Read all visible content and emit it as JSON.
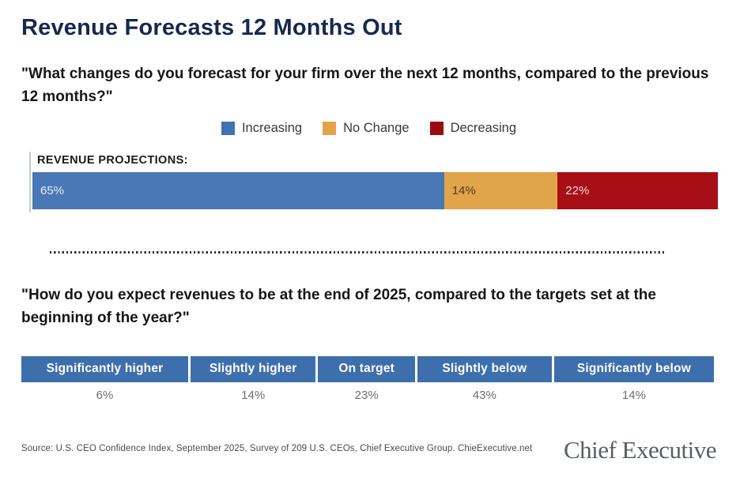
{
  "page": {
    "title": "Revenue Forecasts 12 Months Out",
    "question_1": "\"What changes do you forecast for your firm over the next 12 months, compared to the previous 12 months?\"",
    "question_2": "\"How do you expect revenues to be at the end of 2025, compared to the targets set at the beginning of the year?\"",
    "source": "Source: U.S. CEO Confidence Index, September 2025, Survey of 209 U.S. CEOs, Chief Executive Group. ChieExecutive.net",
    "logo": "Chief Executive"
  },
  "legend": {
    "items": [
      {
        "label": "Increasing",
        "color": "#3d72b4"
      },
      {
        "label": "No Change",
        "color": "#e2a44a"
      },
      {
        "label": "Decreasing",
        "color": "#9a0b11"
      }
    ]
  },
  "revenue_bar": {
    "label": "REVENUE PROJECTIONS:",
    "segments": [
      {
        "name": "Increasing",
        "value_label": "65%",
        "pct": 65,
        "color": "#4a77b5",
        "text_color": "#e9eef6"
      },
      {
        "name": "No Change",
        "value_label": "14%",
        "pct": 14,
        "color": "#e2a44a",
        "text_color": "#4d3a16"
      },
      {
        "name": "Decreasing",
        "value_label": "22%",
        "pct": 22,
        "color": "#a80e15",
        "text_color": "#f0d9d9"
      }
    ]
  },
  "targets_table": {
    "headers": [
      "Significantly higher",
      "Slightly higher",
      "On target",
      "Slightly below",
      "Significantly below"
    ],
    "values": [
      "6%",
      "14%",
      "23%",
      "43%",
      "14%"
    ],
    "header_bg": "#3e6fad",
    "col_weights": [
      24.1,
      18.1,
      14.0,
      19.4,
      23.1
    ]
  },
  "chart_data": [
    {
      "type": "bar",
      "stacked": true,
      "orientation": "horizontal",
      "title": "Revenue Forecasts 12 Months Out",
      "subtitle": "\"What changes do you forecast for your firm over the next 12 months, compared to the previous 12 months?\"",
      "categories": [
        "REVENUE PROJECTIONS:"
      ],
      "series": [
        {
          "name": "Increasing",
          "values": [
            65
          ],
          "color": "#4a77b5"
        },
        {
          "name": "No Change",
          "values": [
            14
          ],
          "color": "#e2a44a"
        },
        {
          "name": "Decreasing",
          "values": [
            22
          ],
          "color": "#a80e15"
        }
      ],
      "unit": "%",
      "legend_position": "top",
      "data_labels": true,
      "grid": false
    },
    {
      "type": "table",
      "title": "\"How do you expect revenues to be at the end of 2025, compared to the targets set at the beginning of the year?\"",
      "categories": [
        "Significantly higher",
        "Slightly higher",
        "On target",
        "Slightly below",
        "Significantly below"
      ],
      "values": [
        6,
        14,
        23,
        43,
        14
      ],
      "unit": "%"
    }
  ]
}
